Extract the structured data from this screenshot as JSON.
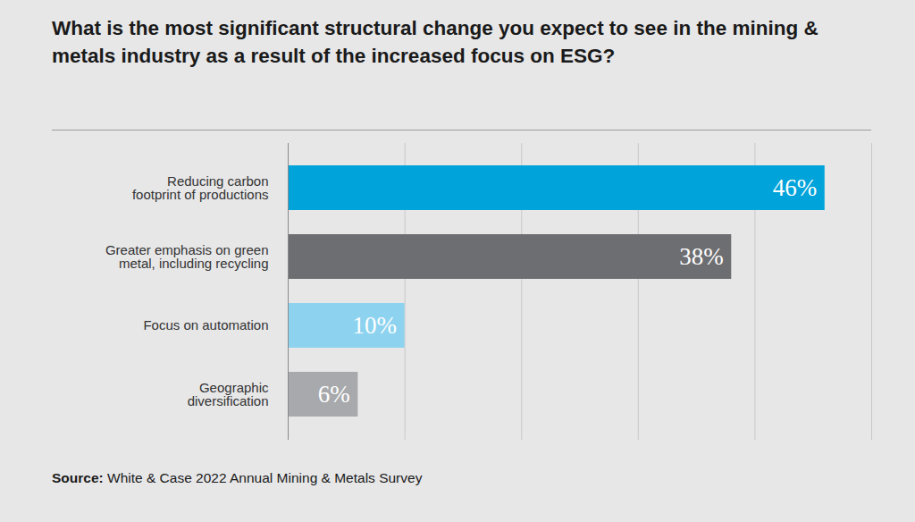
{
  "chart_data": {
    "type": "bar",
    "title": "What is the most significant structural change you expect to see in the mining & metals industry as a result of the increased focus on ESG?",
    "source_label": "Source:",
    "source": "White & Case 2022 Annual Mining & Metals Survey",
    "orientation": "horizontal",
    "categories": [
      "Reducing carbon\nfootprint of productions",
      "Greater emphasis on green\nmetal, including recycling",
      "Focus on automation",
      "Geographic\ndiversification"
    ],
    "values": [
      46,
      38,
      10,
      6
    ],
    "value_labels": [
      "46%",
      "38%",
      "10%",
      "6%"
    ],
    "colors": [
      "#00a3da",
      "#6d6e71",
      "#8dd3ef",
      "#a7a9ac"
    ],
    "xlim": [
      0,
      50
    ],
    "xticks": [
      0,
      10,
      20,
      30,
      40,
      50
    ],
    "grid": true,
    "data_labels": true,
    "tick_labels": "y"
  }
}
